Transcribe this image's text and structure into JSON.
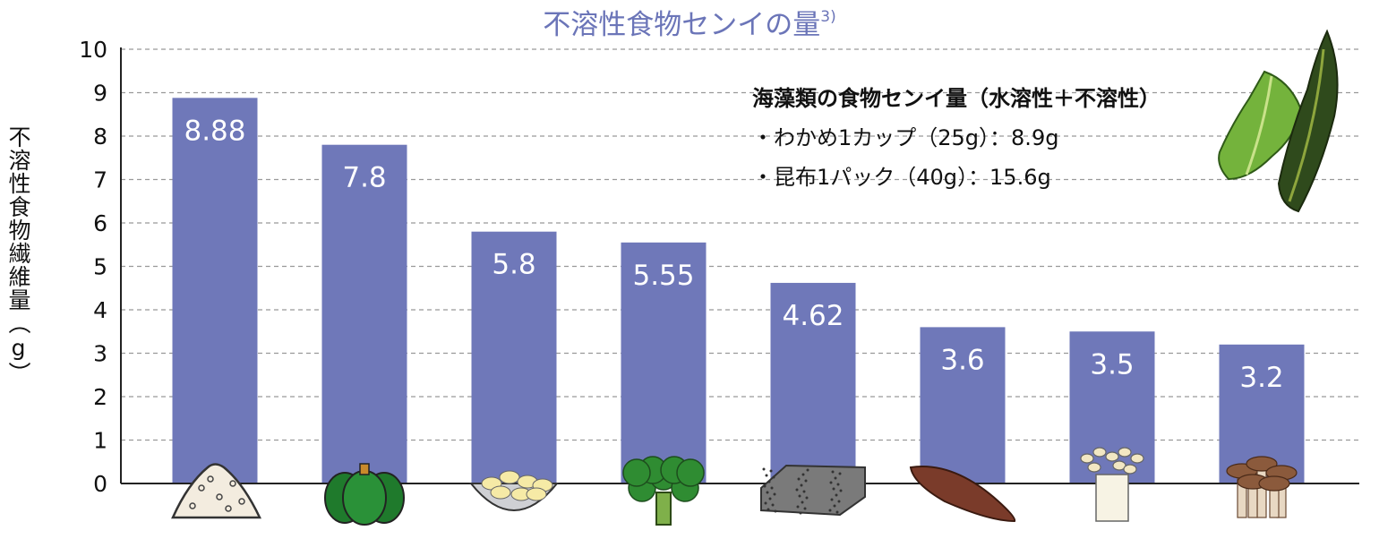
{
  "title": "不溶性食物センイの量",
  "title_ref": "3)",
  "y_axis_label": "不溶性食物繊維量（g）",
  "note": {
    "heading": "海藻類の食物センイ量（水溶性＋不溶性）",
    "lines": [
      "・わかめ1カップ（25g）：8.9g",
      "・昆布1パック（40g）：15.6g"
    ]
  },
  "colors": {
    "bar": "#6f78b9",
    "title": "#6b75b8",
    "grid": "#999999",
    "label": "#ffffff"
  },
  "chart_data": {
    "type": "bar",
    "categories": [
      "",
      "",
      "",
      "",
      "",
      "",
      "",
      ""
    ],
    "category_icons": [
      "flour-icon",
      "pumpkin-icon",
      "beans-bowl-icon",
      "broccoli-icon",
      "konjac-icon",
      "sweet-potato-icon",
      "enoki-icon",
      "shimeji-icon"
    ],
    "values": [
      8.88,
      7.8,
      5.8,
      5.55,
      4.62,
      3.6,
      3.5,
      3.2
    ],
    "value_labels": [
      "8.88",
      "7.8",
      "5.8",
      "5.55",
      "4.62",
      "3.6",
      "3.5",
      "3.2"
    ],
    "ylim": [
      0,
      10
    ],
    "yticks": [
      "0",
      "1",
      "2",
      "3",
      "4",
      "5",
      "6",
      "7",
      "8",
      "9",
      "10"
    ],
    "grid": true,
    "title": "不溶性食物センイの量",
    "ylabel": "不溶性食物繊維量（g）",
    "xlabel": ""
  }
}
